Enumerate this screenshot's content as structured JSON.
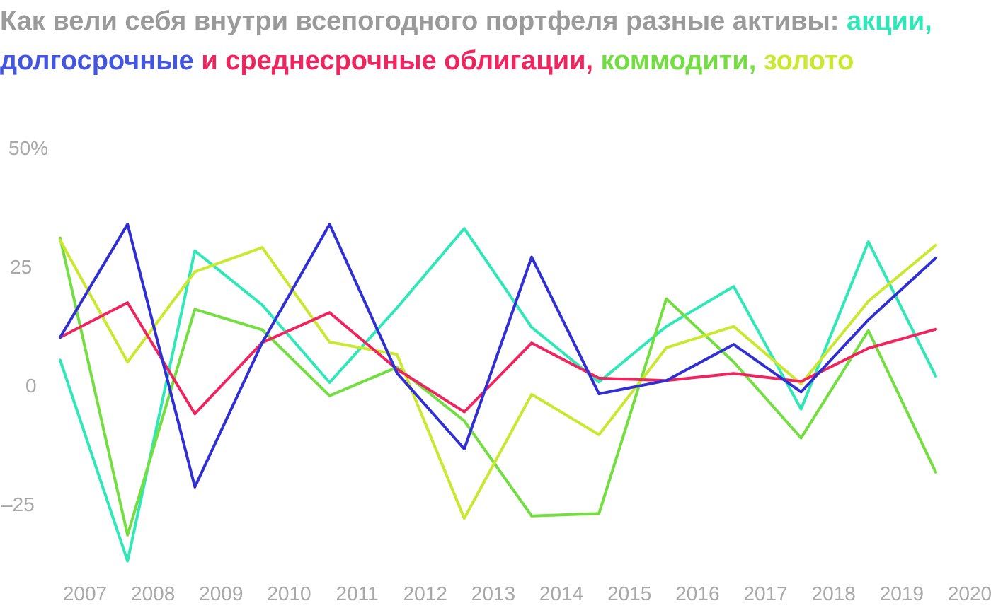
{
  "title_parts": [
    {
      "text": "Как вели себя внутри всепогодного портфеля разные активы: ",
      "color": "#9a9a9a"
    },
    {
      "text": "акции",
      "color": "#2ee8b8"
    },
    {
      "text": ", ",
      "color": "#2ee8b8"
    },
    {
      "text": "долгосрочные",
      "color": "#4455e0"
    },
    {
      "text": " и среднесрочные облигации",
      "color": "#f0245e"
    },
    {
      "text": ", ",
      "color": "#f0245e"
    },
    {
      "text": "коммодити,",
      "color": "#72de3f"
    },
    {
      "text": " золото",
      "color": "#c9e82e"
    }
  ],
  "chart_data": {
    "type": "line",
    "x": [
      "2007",
      "2008",
      "2009",
      "2010",
      "2011",
      "2012",
      "2013",
      "2014",
      "2015",
      "2016",
      "2017",
      "2018",
      "2019",
      "2020"
    ],
    "y_ticks": [
      {
        "value": 50,
        "label": "50%"
      },
      {
        "value": 25,
        "label": "25"
      },
      {
        "value": 0,
        "label": "0"
      },
      {
        "value": -25,
        "label": "–25"
      }
    ],
    "ylim": [
      -38,
      50
    ],
    "grid": false,
    "legend": "in title",
    "series": [
      {
        "name": "акции",
        "color": "#2ee8b8",
        "values": [
          5.3,
          -37.0,
          28.3,
          16.9,
          0.6,
          16.3,
          33.0,
          12.2,
          0.7,
          12.4,
          20.8,
          -5.0,
          30.2,
          1.9
        ]
      },
      {
        "name": "коммодити",
        "color": "#72de3f",
        "values": [
          31.0,
          -31.5,
          16.0,
          11.7,
          -2.2,
          3.8,
          -7.5,
          -27.5,
          -27.0,
          18.2,
          4.9,
          -11.1,
          11.5,
          -18.3
        ]
      },
      {
        "name": "золото",
        "color": "#c9e82e",
        "values": [
          30.5,
          4.9,
          23.9,
          29.0,
          9.1,
          6.5,
          -28.0,
          -1.9,
          -10.4,
          7.9,
          12.4,
          0.3,
          17.7,
          29.5
        ]
      },
      {
        "name": "среднесрочные облигации",
        "color": "#f0245e",
        "values": [
          10.1,
          17.4,
          -6.0,
          9.0,
          15.3,
          3.4,
          -5.6,
          8.9,
          1.5,
          1.0,
          2.5,
          0.8,
          7.8,
          11.8
        ]
      },
      {
        "name": "долгосрочные облигации",
        "color": "#2f2fd4",
        "values": [
          10.1,
          33.9,
          -21.4,
          9.0,
          33.9,
          2.6,
          -13.4,
          27.0,
          -1.8,
          1.0,
          8.6,
          -1.4,
          13.8,
          26.8
        ]
      }
    ]
  }
}
